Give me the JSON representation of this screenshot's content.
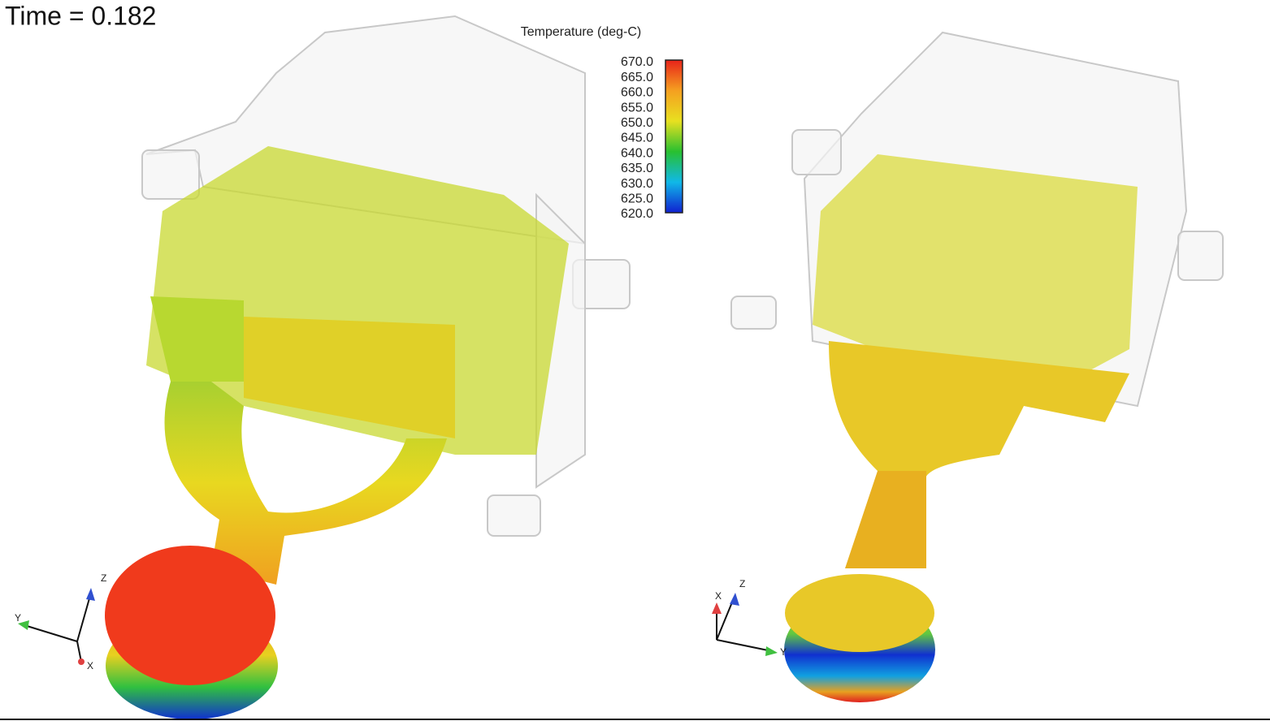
{
  "header": {
    "time_label": "Time = 0.182"
  },
  "colorbar": {
    "title": "Temperature (deg-C)",
    "labels": [
      "670.0",
      "665.0",
      "660.0",
      "655.0",
      "650.0",
      "645.0",
      "640.0",
      "635.0",
      "630.0",
      "625.0",
      "620.0"
    ]
  },
  "left_view": {
    "triad_labels": [
      "Z",
      "Y",
      "X"
    ]
  },
  "right_view": {
    "triad_labels": [
      "X",
      "Z",
      "Y"
    ]
  }
}
